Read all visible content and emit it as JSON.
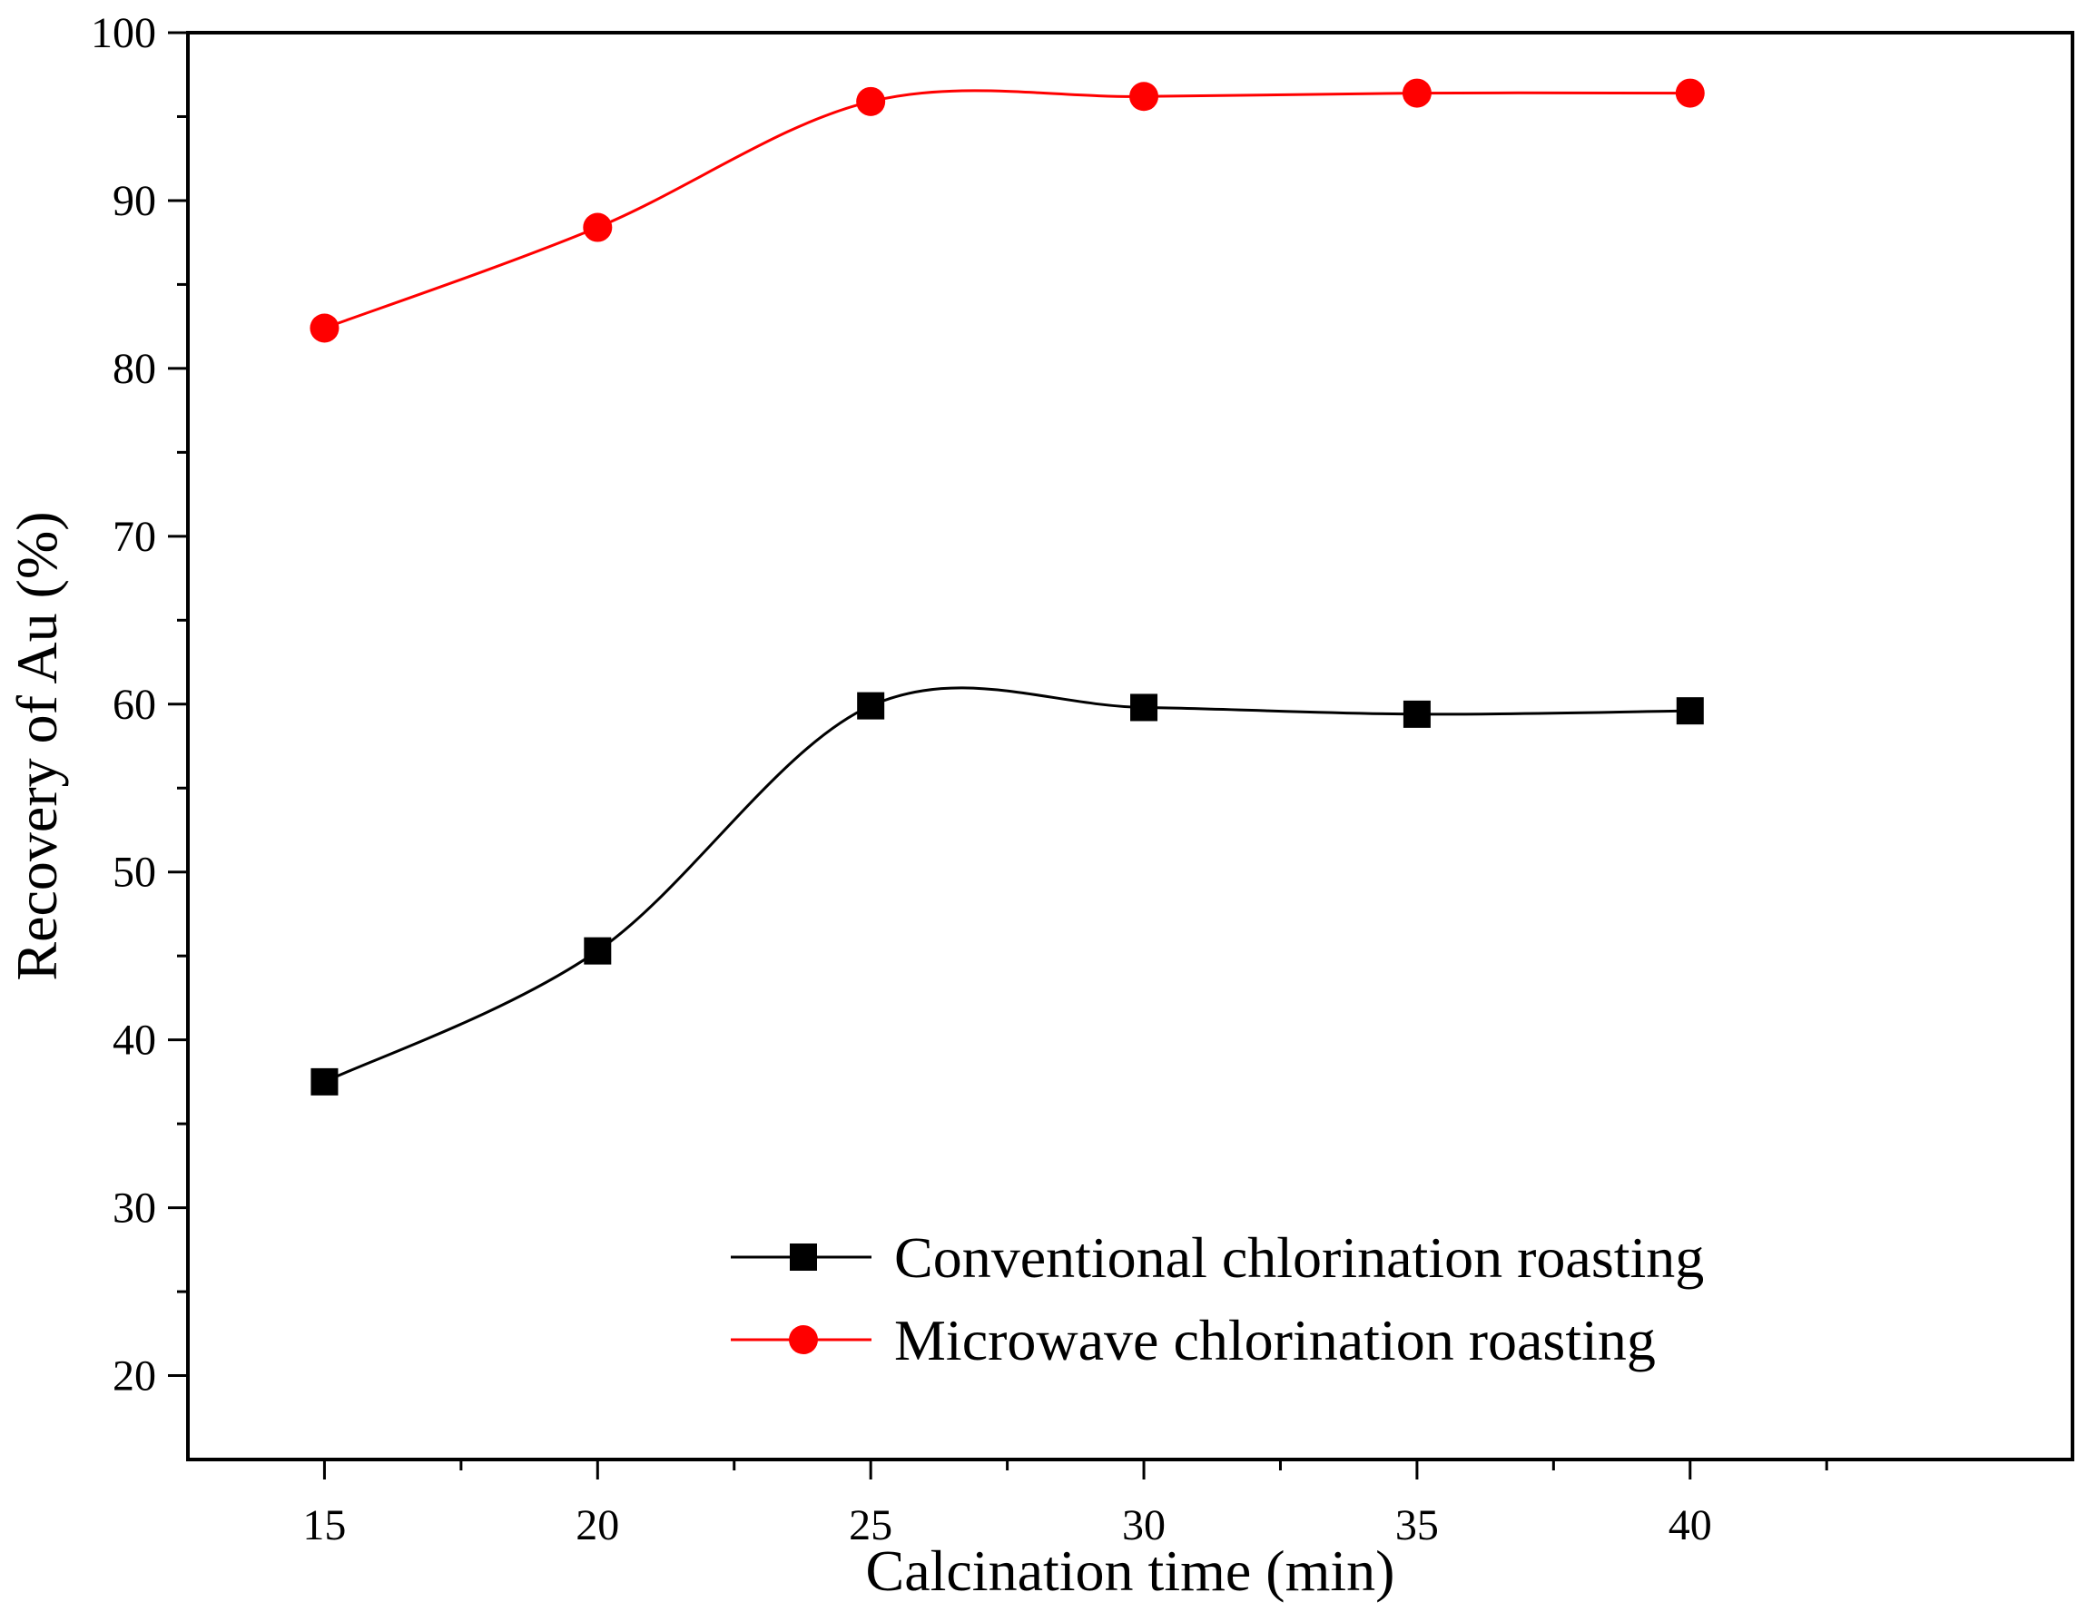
{
  "chart_data": {
    "type": "line",
    "title": "",
    "xlabel": "Calcination time (min)",
    "ylabel": "Recovery of Au (%)",
    "xlim": [
      12.5,
      47
    ],
    "ylim": [
      15,
      100
    ],
    "x": [
      15,
      20,
      25,
      30,
      35,
      40
    ],
    "xticks": [
      15,
      20,
      25,
      30,
      35,
      40
    ],
    "xticks_labels": [
      "15",
      "20",
      "25",
      "30",
      "35",
      "40"
    ],
    "yticks": [
      20,
      30,
      40,
      50,
      60,
      70,
      80,
      90,
      100
    ],
    "yticks_labels": [
      "20",
      "30",
      "40",
      "50",
      "60",
      "70",
      "80",
      "90",
      "100"
    ],
    "series": [
      {
        "name": "Conventional chlorination roasting",
        "values": [
          37.5,
          45.3,
          59.9,
          59.8,
          59.4,
          59.6
        ],
        "color": "#000000",
        "marker": "square"
      },
      {
        "name": "Microwave chlorination roasting",
        "values": [
          82.4,
          88.4,
          95.9,
          96.2,
          96.4,
          96.4
        ],
        "color": "#ff0000",
        "marker": "circle"
      }
    ],
    "legend_position": "bottom-right",
    "grid": false
  }
}
